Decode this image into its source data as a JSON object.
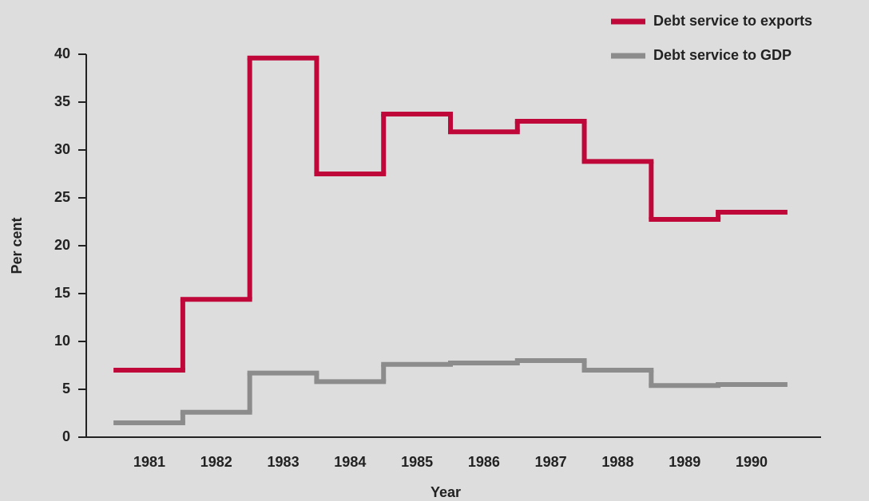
{
  "chart_data": {
    "type": "step",
    "xlabel": "Year",
    "ylabel": "Per cent",
    "categories": [
      "1981",
      "1982",
      "1983",
      "1984",
      "1985",
      "1986",
      "1987",
      "1988",
      "1989",
      "1990"
    ],
    "series": [
      {
        "name": "Debt service to exports",
        "color": "#c0073a",
        "values": [
          7.0,
          14.4,
          39.6,
          27.5,
          33.75,
          31.9,
          33.0,
          28.8,
          22.75,
          23.5
        ]
      },
      {
        "name": "Debt service to GDP",
        "color": "#8c8c8c",
        "values": [
          1.5,
          2.6,
          6.7,
          5.8,
          7.6,
          7.75,
          8.0,
          7.0,
          5.4,
          5.5
        ]
      }
    ],
    "ylim": [
      0,
      40
    ],
    "yticks": [
      0,
      5,
      10,
      15,
      20,
      25,
      30,
      35,
      40
    ],
    "legend": "top-right"
  }
}
